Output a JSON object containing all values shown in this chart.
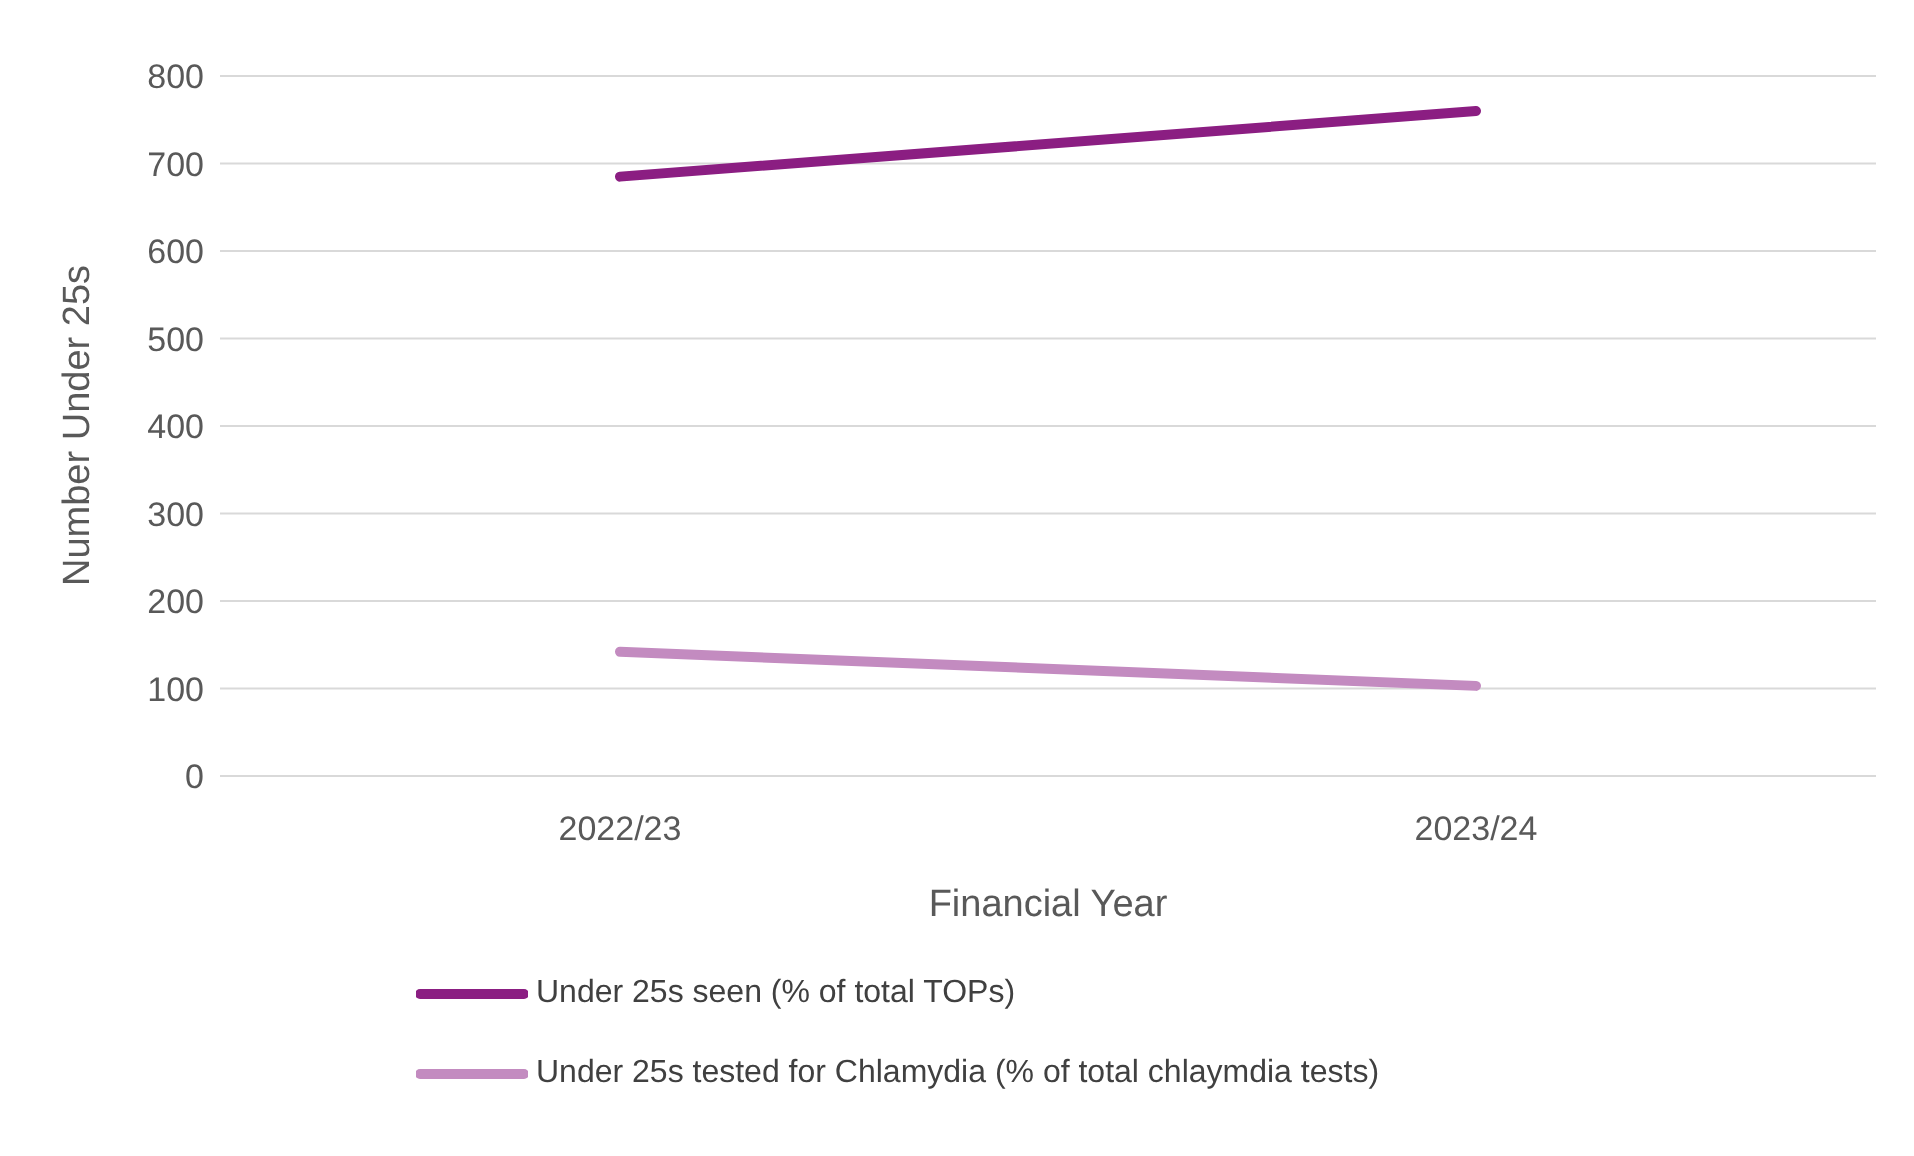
{
  "chart_data": {
    "type": "line",
    "xlabel": "Financial Year",
    "ylabel": "Number Under 25s",
    "categories": [
      "2022/23",
      "2023/24"
    ],
    "series": [
      {
        "name": "Under 25s seen (% of total TOPs)",
        "color": "#8b1e82",
        "values": [
          685,
          760
        ]
      },
      {
        "name": "Under 25s tested for Chlamydia (% of total chlaymdia tests)",
        "color": "#c38bc0",
        "values": [
          142,
          103
        ]
      }
    ],
    "ylim": [
      0,
      800
    ],
    "yticks": [
      0,
      100,
      200,
      300,
      400,
      500,
      600,
      700,
      800
    ],
    "grid": "y",
    "legend": "bottom",
    "marker": "none",
    "line_style": "solid"
  }
}
